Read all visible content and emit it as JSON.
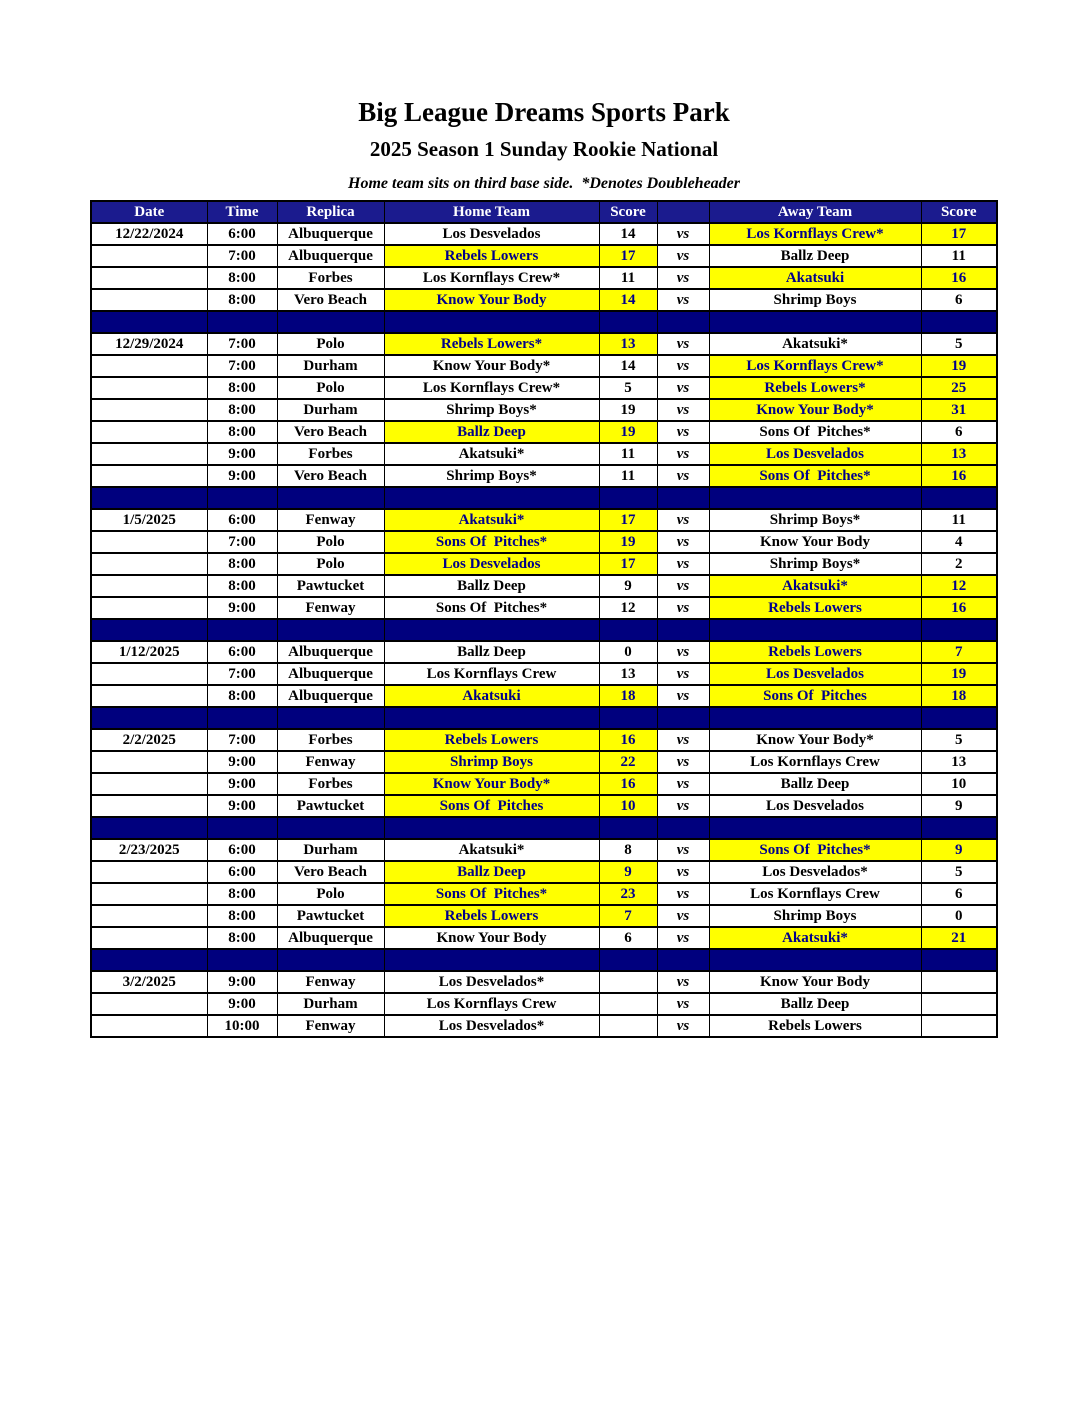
{
  "page": {
    "title": "Big League Dreams Sports Park",
    "subtitle": "2025 Season 1 Sunday Rookie National",
    "note": "Home team sits on third base side.  *Denotes Doubleheader"
  },
  "colors": {
    "header_bg": "#1b1b8e",
    "header_text": "#ffffff",
    "separator_bg": "#00007e",
    "highlight_bg": "#ffff00",
    "highlight_text": "#00008b",
    "border": "#000000"
  },
  "table": {
    "headers": {
      "date": "Date",
      "time": "Time",
      "replica": "Replica",
      "home_team": "Home Team",
      "home_score": "Score",
      "vs": "",
      "away_team": "Away Team",
      "away_score": "Score"
    },
    "vs_label": "vs",
    "groups": [
      {
        "date": "12/22/2024",
        "games": [
          {
            "time": "6:00",
            "replica": "Albuquerque",
            "home": "Los Desvelados",
            "home_score": "14",
            "away": "Los Kornflays Crew*",
            "away_score": "17",
            "winner": "away"
          },
          {
            "time": "7:00",
            "replica": "Albuquerque",
            "home": "Rebels Lowers",
            "home_score": "17",
            "away": "Ballz Deep",
            "away_score": "11",
            "winner": "home"
          },
          {
            "time": "8:00",
            "replica": "Forbes",
            "home": "Los Kornflays Crew*",
            "home_score": "11",
            "away": "Akatsuki",
            "away_score": "16",
            "winner": "away"
          },
          {
            "time": "8:00",
            "replica": "Vero Beach",
            "home": "Know Your Body",
            "home_score": "14",
            "away": "Shrimp Boys",
            "away_score": "6",
            "winner": "home"
          }
        ]
      },
      {
        "date": "12/29/2024",
        "games": [
          {
            "time": "7:00",
            "replica": "Polo",
            "home": "Rebels Lowers*",
            "home_score": "13",
            "away": "Akatsuki*",
            "away_score": "5",
            "winner": "home"
          },
          {
            "time": "7:00",
            "replica": "Durham",
            "home": "Know Your Body*",
            "home_score": "14",
            "away": "Los Kornflays Crew*",
            "away_score": "19",
            "winner": "away"
          },
          {
            "time": "8:00",
            "replica": "Polo",
            "home": "Los Kornflays Crew*",
            "home_score": "5",
            "away": "Rebels Lowers*",
            "away_score": "25",
            "winner": "away"
          },
          {
            "time": "8:00",
            "replica": "Durham",
            "home": "Shrimp Boys*",
            "home_score": "19",
            "away": "Know Your Body*",
            "away_score": "31",
            "winner": "away"
          },
          {
            "time": "8:00",
            "replica": "Vero Beach",
            "home": "Ballz Deep",
            "home_score": "19",
            "away": "Sons Of  Pitches*",
            "away_score": "6",
            "winner": "home"
          },
          {
            "time": "9:00",
            "replica": "Forbes",
            "home": "Akatsuki*",
            "home_score": "11",
            "away": "Los Desvelados",
            "away_score": "13",
            "winner": "away"
          },
          {
            "time": "9:00",
            "replica": "Vero Beach",
            "home": "Shrimp Boys*",
            "home_score": "11",
            "away": "Sons Of  Pitches*",
            "away_score": "16",
            "winner": "away"
          }
        ]
      },
      {
        "date": "1/5/2025",
        "games": [
          {
            "time": "6:00",
            "replica": "Fenway",
            "home": "Akatsuki*",
            "home_score": "17",
            "away": "Shrimp Boys*",
            "away_score": "11",
            "winner": "home"
          },
          {
            "time": "7:00",
            "replica": "Polo",
            "home": "Sons Of  Pitches*",
            "home_score": "19",
            "away": "Know Your Body",
            "away_score": "4",
            "winner": "home"
          },
          {
            "time": "8:00",
            "replica": "Polo",
            "home": "Los Desvelados",
            "home_score": "17",
            "away": "Shrimp Boys*",
            "away_score": "2",
            "winner": "home"
          },
          {
            "time": "8:00",
            "replica": "Pawtucket",
            "home": "Ballz Deep",
            "home_score": "9",
            "away": "Akatsuki*",
            "away_score": "12",
            "winner": "away"
          },
          {
            "time": "9:00",
            "replica": "Fenway",
            "home": "Sons Of  Pitches*",
            "home_score": "12",
            "away": "Rebels Lowers",
            "away_score": "16",
            "winner": "away"
          }
        ]
      },
      {
        "date": "1/12/2025",
        "games": [
          {
            "time": "6:00",
            "replica": "Albuquerque",
            "home": "Ballz Deep",
            "home_score": "0",
            "away": "Rebels Lowers",
            "away_score": "7",
            "winner": "away"
          },
          {
            "time": "7:00",
            "replica": "Albuquerque",
            "home": "Los Kornflays Crew",
            "home_score": "13",
            "away": "Los Desvelados",
            "away_score": "19",
            "winner": "away"
          },
          {
            "time": "8:00",
            "replica": "Albuquerque",
            "home": "Akatsuki",
            "home_score": "18",
            "away": "Sons Of  Pitches",
            "away_score": "18",
            "winner": "both"
          }
        ]
      },
      {
        "date": "2/2/2025",
        "games": [
          {
            "time": "7:00",
            "replica": "Forbes",
            "home": "Rebels Lowers",
            "home_score": "16",
            "away": "Know Your Body*",
            "away_score": "5",
            "winner": "home"
          },
          {
            "time": "9:00",
            "replica": "Fenway",
            "home": "Shrimp Boys",
            "home_score": "22",
            "away": "Los Kornflays Crew",
            "away_score": "13",
            "winner": "home"
          },
          {
            "time": "9:00",
            "replica": "Forbes",
            "home": "Know Your Body*",
            "home_score": "16",
            "away": "Ballz Deep",
            "away_score": "10",
            "winner": "home"
          },
          {
            "time": "9:00",
            "replica": "Pawtucket",
            "home": "Sons Of  Pitches",
            "home_score": "10",
            "away": "Los Desvelados",
            "away_score": "9",
            "winner": "home"
          }
        ]
      },
      {
        "date": "2/23/2025",
        "games": [
          {
            "time": "6:00",
            "replica": "Durham",
            "home": "Akatsuki*",
            "home_score": "8",
            "away": "Sons Of  Pitches*",
            "away_score": "9",
            "winner": "away"
          },
          {
            "time": "6:00",
            "replica": "Vero Beach",
            "home": "Ballz Deep",
            "home_score": "9",
            "away": "Los Desvelados*",
            "away_score": "5",
            "winner": "home"
          },
          {
            "time": "8:00",
            "replica": "Polo",
            "home": "Sons Of  Pitches*",
            "home_score": "23",
            "away": "Los Kornflays Crew",
            "away_score": "6",
            "winner": "home"
          },
          {
            "time": "8:00",
            "replica": "Pawtucket",
            "home": "Rebels Lowers",
            "home_score": "7",
            "away": "Shrimp Boys",
            "away_score": "0",
            "winner": "home"
          },
          {
            "time": "8:00",
            "replica": "Albuquerque",
            "home": "Know Your Body",
            "home_score": "6",
            "away": "Akatsuki*",
            "away_score": "21",
            "winner": "away"
          }
        ]
      },
      {
        "date": "3/2/2025",
        "games": [
          {
            "time": "9:00",
            "replica": "Fenway",
            "home": "Los Desvelados*",
            "home_score": "",
            "away": "Know Your Body",
            "away_score": "",
            "winner": "none"
          },
          {
            "time": "9:00",
            "replica": "Durham",
            "home": "Los Kornflays Crew",
            "home_score": "",
            "away": "Ballz Deep",
            "away_score": "",
            "winner": "none"
          },
          {
            "time": "10:00",
            "replica": "Fenway",
            "home": "Los Desvelados*",
            "home_score": "",
            "away": "Rebels Lowers",
            "away_score": "",
            "winner": "none"
          }
        ]
      }
    ]
  }
}
